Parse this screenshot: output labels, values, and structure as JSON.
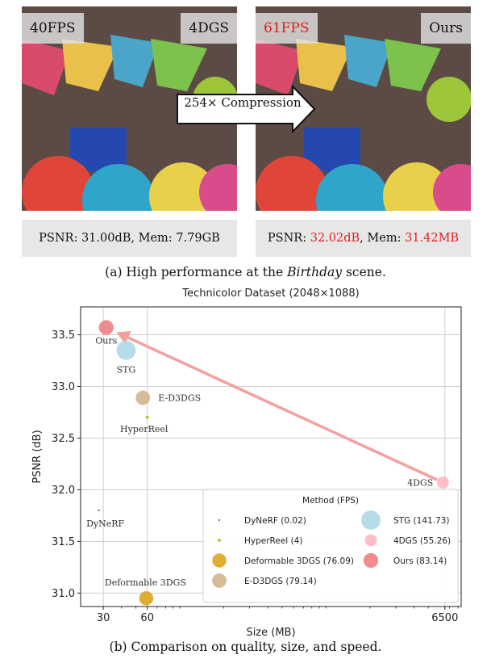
{
  "panel_a": {
    "left": {
      "fps": "40FPS",
      "method": "4DGS",
      "stat_prefix": "PSNR: ",
      "psnr": "31.00dB",
      "stat_mid": ", Mem: ",
      "mem": "7.79GB"
    },
    "right": {
      "fps": "61FPS",
      "method": "Ours",
      "stat_prefix": "PSNR: ",
      "psnr": "32.02dB",
      "stat_mid": ", Mem: ",
      "mem": "31.42MB"
    },
    "arrow_label": "254× Compression",
    "caption_pre": "(a) High performance at the ",
    "caption_italic": "Birthday",
    "caption_post": " scene.",
    "highlight_color": "#e0201b"
  },
  "panel_b": {
    "caption": "(b) Comparison on quality, size, and speed."
  },
  "chart_data": {
    "type": "scatter",
    "title": "Technicolor Dataset (2048×1088)",
    "xlabel": "Size (MB)",
    "ylabel": "PSNR (dB)",
    "x_scale": "log",
    "x_ticks": [
      30,
      60,
      6500
    ],
    "y_ticks": [
      31.0,
      31.5,
      32.0,
      32.5,
      33.0,
      33.5
    ],
    "grid": true,
    "legend_title": "Method (FPS)",
    "legend_position": "lower-right",
    "points": [
      {
        "label": "DyNeRF",
        "legend": "DyNeRF (0.02)",
        "fps": 0.02,
        "size_mb": 28,
        "psnr": 31.8,
        "color": "#000000"
      },
      {
        "label": "HyperReel",
        "legend": "HyperReel (4)",
        "fps": 4,
        "size_mb": 60,
        "psnr": 32.7,
        "color": "#9acd32"
      },
      {
        "label": "Deformable 3DGS",
        "legend": "Deformable 3DGS (76.09)",
        "fps": 76.09,
        "size_mb": 59,
        "psnr": 30.95,
        "color": "#daa520"
      },
      {
        "label": "E-D3DGS",
        "legend": "E-D3DGS (79.14)",
        "fps": 79.14,
        "size_mb": 56,
        "psnr": 32.89,
        "color": "#d2b48c"
      },
      {
        "label": "STG",
        "legend": "STG (141.73)",
        "fps": 141.73,
        "size_mb": 43,
        "psnr": 33.35,
        "color": "#add8e6"
      },
      {
        "label": "4DGS",
        "legend": "4DGS (55.26)",
        "fps": 55.26,
        "size_mb": 6300,
        "psnr": 32.07,
        "color": "#ffb6c1"
      },
      {
        "label": "Ours",
        "legend": "Ours (83.14)",
        "fps": 83.14,
        "size_mb": 31.42,
        "psnr": 33.57,
        "color": "#f08080"
      }
    ],
    "arrow": {
      "from": "4DGS",
      "to": "Ours",
      "color": "#f4a0a0"
    }
  }
}
